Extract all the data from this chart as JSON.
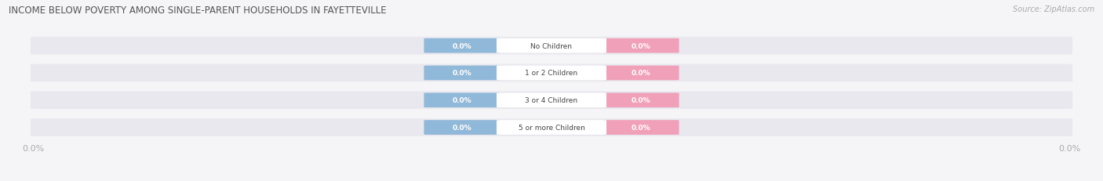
{
  "title": "INCOME BELOW POVERTY AMONG SINGLE-PARENT HOUSEHOLDS IN FAYETTEVILLE",
  "source": "Source: ZipAtlas.com",
  "categories": [
    "No Children",
    "1 or 2 Children",
    "3 or 4 Children",
    "5 or more Children"
  ],
  "father_values": [
    0.0,
    0.0,
    0.0,
    0.0
  ],
  "mother_values": [
    0.0,
    0.0,
    0.0,
    0.0
  ],
  "father_color": "#90b8d8",
  "mother_color": "#f0a0b8",
  "bar_bg_color": "#e8e8ee",
  "title_color": "#555555",
  "axis_label_color": "#aaaaaa",
  "category_label_color": "#444444",
  "figsize": [
    14.06,
    2.32
  ],
  "dpi": 100,
  "background_color": "#f5f5f8",
  "category_box_color": "#ffffff"
}
